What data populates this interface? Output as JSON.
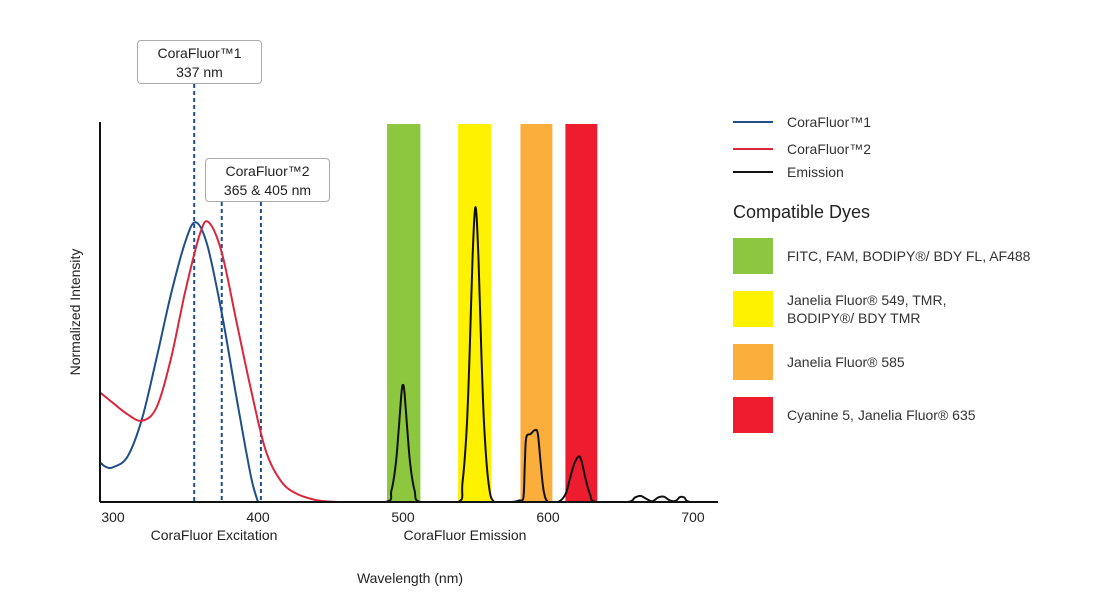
{
  "chart_data": {
    "type": "line",
    "xlabel": "Wavelength (nm)",
    "ylabel": "Normalized Intensity",
    "xlim": [
      291,
      717
    ],
    "ylim": [
      0,
      1
    ],
    "x_ticks": [
      300,
      400,
      500,
      600,
      700
    ],
    "x_sublabels": [
      "CoraFluor Excitation",
      "CoraFluor Emission"
    ],
    "grid": false,
    "legend_placement": "right",
    "series": [
      {
        "name": "CoraFluor™1",
        "color": "#1f4e8c",
        "points": [
          [
            291,
            0.105
          ],
          [
            295,
            0.093
          ],
          [
            300,
            0.092
          ],
          [
            310,
            0.12
          ],
          [
            320,
            0.22
          ],
          [
            330,
            0.38
          ],
          [
            340,
            0.55
          ],
          [
            350,
            0.69
          ],
          [
            357,
            0.74
          ],
          [
            365,
            0.68
          ],
          [
            375,
            0.5
          ],
          [
            385,
            0.28
          ],
          [
            395,
            0.07
          ],
          [
            400,
            0.0
          ]
        ]
      },
      {
        "name": "CoraFluor™2",
        "color": "#d9273c",
        "points": [
          [
            291,
            0.29
          ],
          [
            300,
            0.262
          ],
          [
            310,
            0.232
          ],
          [
            320,
            0.215
          ],
          [
            330,
            0.25
          ],
          [
            340,
            0.38
          ],
          [
            350,
            0.56
          ],
          [
            360,
            0.71
          ],
          [
            366,
            0.74
          ],
          [
            375,
            0.66
          ],
          [
            385,
            0.48
          ],
          [
            395,
            0.3
          ],
          [
            405,
            0.14
          ],
          [
            415,
            0.06
          ],
          [
            425,
            0.025
          ],
          [
            440,
            0.005
          ],
          [
            455,
            0.0
          ]
        ]
      },
      {
        "name": "Emission",
        "color": "#111111",
        "points": [
          [
            455,
            0
          ],
          [
            488,
            0
          ],
          [
            492,
            0.03
          ],
          [
            495,
            0.1
          ],
          [
            497,
            0.19
          ],
          [
            499,
            0.29
          ],
          [
            500,
            0.31
          ],
          [
            501,
            0.29
          ],
          [
            503,
            0.19
          ],
          [
            505,
            0.1
          ],
          [
            508,
            0.03
          ],
          [
            512,
            0
          ],
          [
            538,
            0
          ],
          [
            541,
            0.05
          ],
          [
            544,
            0.2
          ],
          [
            546,
            0.4
          ],
          [
            548,
            0.65
          ],
          [
            550,
            0.78
          ],
          [
            552,
            0.65
          ],
          [
            554,
            0.4
          ],
          [
            556,
            0.2
          ],
          [
            559,
            0.05
          ],
          [
            563,
            0
          ],
          [
            575,
            0
          ],
          [
            580,
            0.004
          ],
          [
            583,
            0.01
          ],
          [
            584,
            0.1
          ],
          [
            585,
            0.17
          ],
          [
            588,
            0.18
          ],
          [
            591,
            0.19
          ],
          [
            593,
            0.18
          ],
          [
            595,
            0.1
          ],
          [
            597,
            0.03
          ],
          [
            600,
            0
          ],
          [
            607,
            0
          ],
          [
            612,
            0.02
          ],
          [
            615,
            0.06
          ],
          [
            618,
            0.1
          ],
          [
            621,
            0.12
          ],
          [
            623,
            0.11
          ],
          [
            626,
            0.06
          ],
          [
            629,
            0.02
          ],
          [
            633,
            0
          ],
          [
            655,
            0
          ],
          [
            660,
            0.012
          ],
          [
            664,
            0.016
          ],
          [
            668,
            0.008
          ],
          [
            672,
            0.002
          ],
          [
            676,
            0.012
          ],
          [
            680,
            0.014
          ],
          [
            684,
            0.004
          ],
          [
            688,
            0.003
          ],
          [
            691,
            0.013
          ],
          [
            694,
            0.012
          ],
          [
            698,
            0
          ],
          [
            717,
            0
          ]
        ]
      }
    ],
    "dye_bands": [
      {
        "range": [
          489,
          512
        ],
        "color": "#8dc63f",
        "label": "FITC, FAM, BODIPY®/ BDY FL, AF488"
      },
      {
        "range": [
          538,
          561
        ],
        "color": "#fff200",
        "label_lines": [
          "Janelia Fluor® 549, TMR,",
          "BODIPY®/ BDY TMR"
        ]
      },
      {
        "range": [
          581,
          603
        ],
        "color": "#fbae3c",
        "label": "Janelia Fluor® 585"
      },
      {
        "range": [
          612,
          634
        ],
        "color": "#ed1c2e",
        "label": "Cyanine 5, Janelia Fluor® 635"
      }
    ],
    "excitation_lines": [
      356,
      375,
      402
    ],
    "excitation_line_color": "#1f4e8c",
    "callouts": [
      {
        "lines": [
          "CoraFluor™1",
          "337 nm"
        ]
      },
      {
        "lines": [
          "CoraFluor™2",
          "365 & 405 nm"
        ]
      }
    ],
    "dyes_title": "Compatible Dyes"
  }
}
